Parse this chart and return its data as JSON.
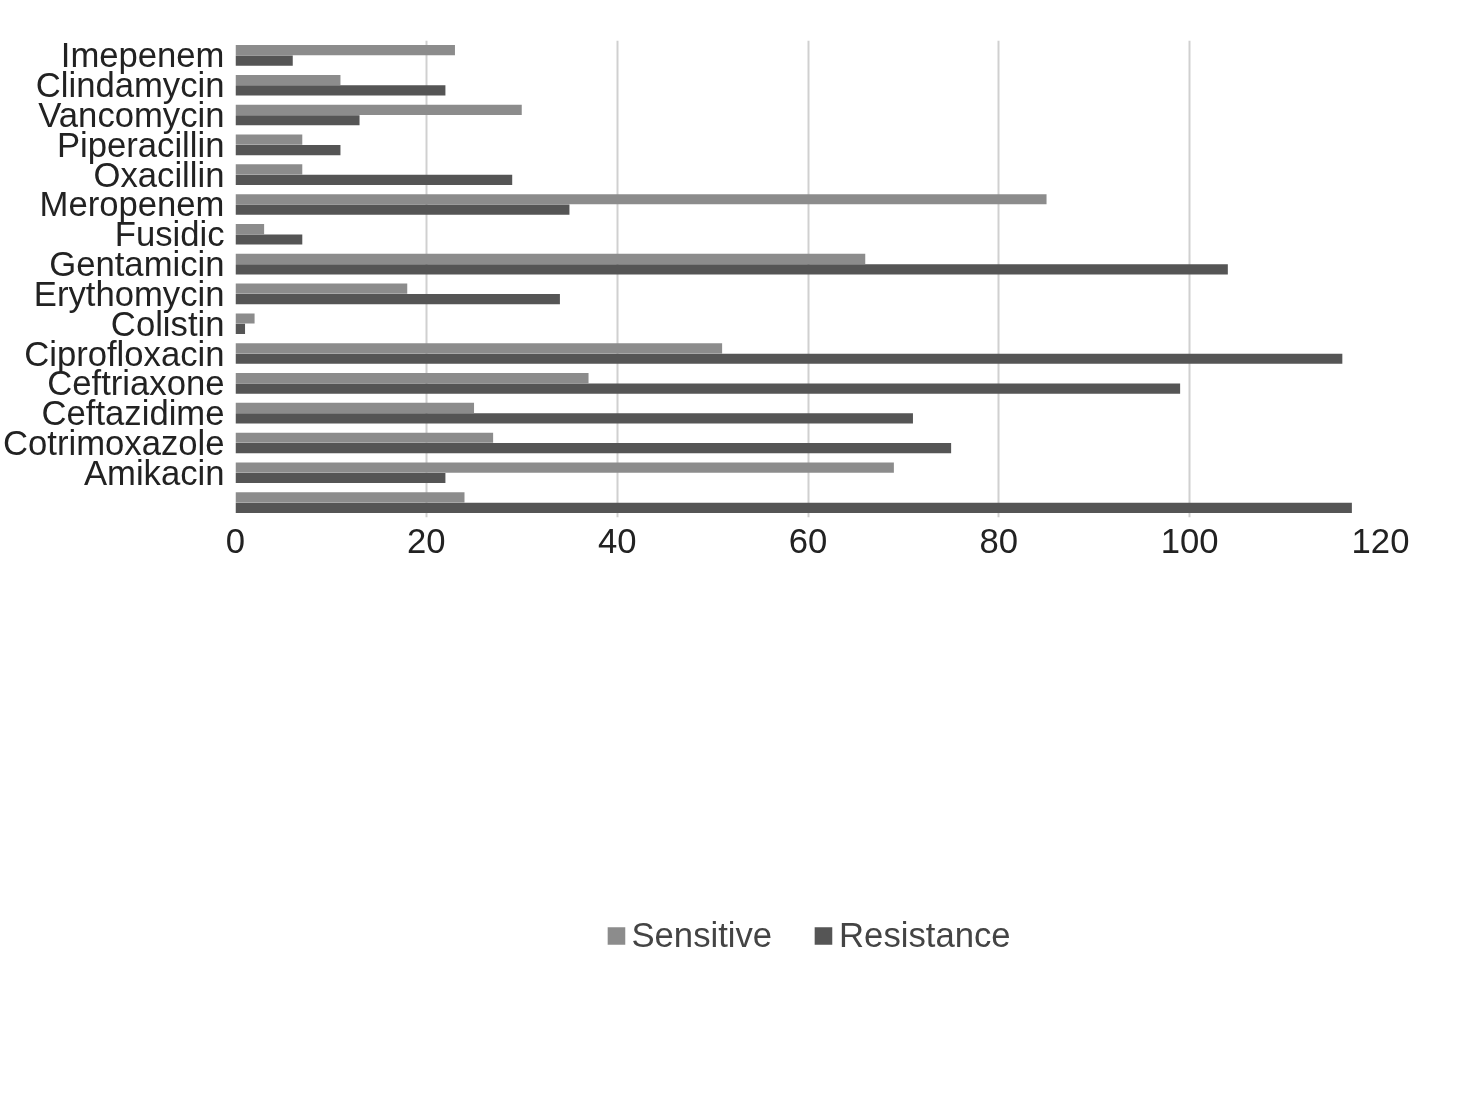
{
  "chart_data": {
    "type": "bar",
    "orientation": "horizontal",
    "categories": [
      "Imepenem",
      "Clindamycin",
      "Vancomycin",
      "Piperacillin",
      "Oxacillin",
      "Meropenem",
      "Fusidic",
      "Gentamicin",
      "Erythomycin",
      "Colistin",
      "Ciprofloxacin",
      "Ceftriaxone",
      "Ceftazidime",
      "Cotrimoxazole",
      "Amikacin",
      null
    ],
    "series": [
      {
        "name": "Sensitive",
        "color": "#8c8c8c",
        "values": [
          23,
          11,
          30,
          7,
          7,
          85,
          3,
          66,
          18,
          2,
          51,
          37,
          25,
          27,
          69,
          24
        ]
      },
      {
        "name": "Resistance",
        "color": "#555555",
        "values": [
          6,
          22,
          13,
          11,
          29,
          35,
          7,
          104,
          34,
          1,
          116,
          99,
          71,
          75,
          22,
          117
        ]
      }
    ],
    "xlim": [
      0,
      120
    ],
    "xticks": [
      0,
      20,
      40,
      60,
      80,
      100,
      120
    ],
    "grid": "x",
    "legend": "bottom"
  }
}
